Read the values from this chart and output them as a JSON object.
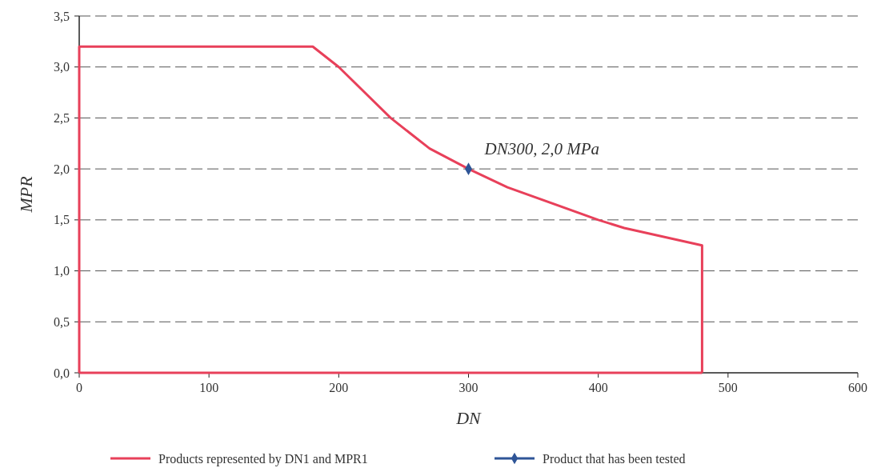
{
  "chart_data": {
    "type": "line",
    "xlabel": "DN",
    "ylabel": "MPR",
    "xlim": [
      0,
      600
    ],
    "xticks": [
      0,
      100,
      200,
      300,
      400,
      500,
      600
    ],
    "ylim": [
      0,
      3.5
    ],
    "yticks": [
      {
        "value": 0,
        "label": "0,0"
      },
      {
        "value": 0.5,
        "label": "0,5"
      },
      {
        "value": 1,
        "label": "1,0"
      },
      {
        "value": 1.5,
        "label": "1,5"
      },
      {
        "value": 2,
        "label": "2,0"
      },
      {
        "value": 2.5,
        "label": "2,5"
      },
      {
        "value": 3,
        "label": "3,0"
      },
      {
        "value": 3.5,
        "label": "3,5"
      }
    ],
    "grid": "y",
    "legend": "bottom",
    "series": [
      {
        "name": "Products represented by DN1 and MPR1",
        "color": "#e8405a",
        "x": [
          0,
          0,
          180,
          200,
          240,
          270,
          300,
          330,
          400,
          420,
          480,
          480
        ],
        "values": [
          0,
          3.2,
          3.2,
          3.0,
          2.5,
          2.2,
          2.0,
          1.82,
          1.5,
          1.42,
          1.25,
          0
        ]
      },
      {
        "color": "#e8405a",
        "x": [
          0,
          480
        ],
        "values": [
          0,
          0
        ]
      },
      {
        "name": "Product that has been tested",
        "type": "scatter",
        "marker": "diamond",
        "color": "#2f5597",
        "x": [
          300
        ],
        "values": [
          2.0
        ]
      }
    ],
    "annotations": [
      {
        "text": "DN300, 2,0 MPa",
        "x": 300,
        "y": 2.0
      }
    ]
  }
}
